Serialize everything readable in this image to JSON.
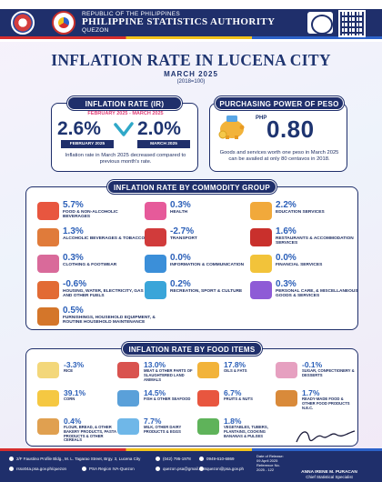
{
  "header": {
    "republic": "REPUBLIC OF THE PHILIPPINES",
    "agency": "PHILIPPINE STATISTICS AUTHORITY",
    "province": "QUEZON"
  },
  "title": "INFLATION RATE IN LUCENA CITY",
  "subtitle": "MARCH 2025",
  "base_year": "(2018=100)",
  "inflation_rate": {
    "header": "INFLATION RATE (IR)",
    "period": "FEBRUARY 2025  -  MARCH 2025",
    "feb_value": "2.6%",
    "mar_value": "2.0%",
    "feb_label": "FEBRUARY 2025",
    "mar_label": "MARCH 2025",
    "note": "Inflation rate in March 2025 decreased compared to previous month's rate."
  },
  "ppp": {
    "header": "PURCHASING POWER OF PESO (PPP)",
    "currency": "PHP",
    "value": "0.80",
    "note": "Goods and services worth one peso in March 2025 can be availed at only 80 centavos in 2018."
  },
  "commodity": {
    "header": "INFLATION RATE  BY COMMODITY GROUP",
    "items": [
      {
        "value": "5.7%",
        "label": "FOOD & NON-ALCOHOLIC BEVERAGES",
        "icon": "basket-icon"
      },
      {
        "value": "0.3%",
        "label": "HEALTH",
        "icon": "first-aid-icon"
      },
      {
        "value": "2.2%",
        "label": "EDUCATION SERVICES",
        "icon": "books-icon"
      },
      {
        "value": "1.3%",
        "label": "ALCOHOLIC BEVERAGES & TOBACCO",
        "icon": "bottle-icon"
      },
      {
        "value": "-2.7%",
        "label": "TRANSPORT",
        "icon": "car-icon"
      },
      {
        "value": "1.6%",
        "label": "RESTAURANTS & ACCOMMODATION SERVICES",
        "icon": "restaurant-icon"
      },
      {
        "value": "0.3%",
        "label": "CLOTHING & FOOTWEAR",
        "icon": "clothing-icon"
      },
      {
        "value": "0.0%",
        "label": "INFORMATION & COMMUNICATION",
        "icon": "phone-icon"
      },
      {
        "value": "0.0%",
        "label": "FINANCIAL SERVICES",
        "icon": "money-icon"
      },
      {
        "value": "-0.6%",
        "label": "HOUSING, WATER, ELECTRICITY, GAS AND OTHER FUELS",
        "icon": "house-icon"
      },
      {
        "value": "0.2%",
        "label": "RECREATION, SPORT & CULTURE",
        "icon": "sports-icon"
      },
      {
        "value": "0.3%",
        "label": "PERSONAL CARE, & MISCELLANEOUS GOODS & SERVICES",
        "icon": "personal-care-icon"
      },
      {
        "value": "0.5%",
        "label": "FURNISHINGS, HOUSEHOLD EQUIPMENT, & ROUTINE HOUSEHOLD MAINTENANCE",
        "icon": "sofa-icon"
      }
    ]
  },
  "food": {
    "header": "INFLATION RATE BY FOOD ITEMS",
    "items": [
      {
        "value": "-3.3%",
        "label": "RICE",
        "icon": "rice-icon"
      },
      {
        "value": "13.0%",
        "label": "MEAT & OTHER PARTS OF SLAUGHTERED LAND ANIMALS",
        "icon": "meat-icon"
      },
      {
        "value": "17.8%",
        "label": "OILS & FATS",
        "icon": "oil-icon"
      },
      {
        "value": "-0.1%",
        "label": "SUGAR, CONFECTIONERY & DESSERTS",
        "icon": "sugar-icon"
      },
      {
        "value": "39.1%",
        "label": "CORN",
        "icon": "corn-icon"
      },
      {
        "value": "14.5%",
        "label": "FISH & OTHER SEAFOOD",
        "icon": "fish-icon"
      },
      {
        "value": "6.7%",
        "label": "FRUITS & NUTS",
        "icon": "fruit-icon"
      },
      {
        "value": "1.7%",
        "label": "READY-MADE FOOD & OTHER FOOD PRODUCTS N.E.C.",
        "icon": "ready-food-icon"
      },
      {
        "value": "0.4%",
        "label": "FLOUR, BREAD, & OTHER BAKERY PRODUCTS, PASTA PRODUCTS & OTHER CEREALS",
        "icon": "bread-icon"
      },
      {
        "value": "7.7%",
        "label": "MILK, OTHER DAIRY PRODUCTS & EGGS",
        "icon": "milk-icon"
      },
      {
        "value": "1.8%",
        "label": "VEGETABLES, TUBERS, PLANTAINS, COOKING BANANAS & PULSES",
        "icon": "vegetable-icon"
      }
    ]
  },
  "footer": {
    "address": "2/F Faustino Profile Bldg., M. L. Tagarao Street, Brgy. 3, Lucena City",
    "phone1": "(042) 795-1978",
    "phone2": "0949-610-6869",
    "facebook": "rsso04a.psa.gov.ph/quezon",
    "fb_page": "PSA Region IVA-Quezon",
    "email1": "quezon.psa@gmail.com",
    "email2": "quezon@psa.gov.ph",
    "release_label": "Date of Release:",
    "release_date": "09 April 2025",
    "reference_label": "Reference No.",
    "reference_no": "2025 - 122",
    "signatory_name": "ANNA IRENE M. PURACAN",
    "signatory_title": "Chief Statistical Specialist"
  },
  "colors": {
    "navy": "#1f2f6b",
    "accent_blue": "#2b5fb8",
    "pink": "#e0407a"
  }
}
